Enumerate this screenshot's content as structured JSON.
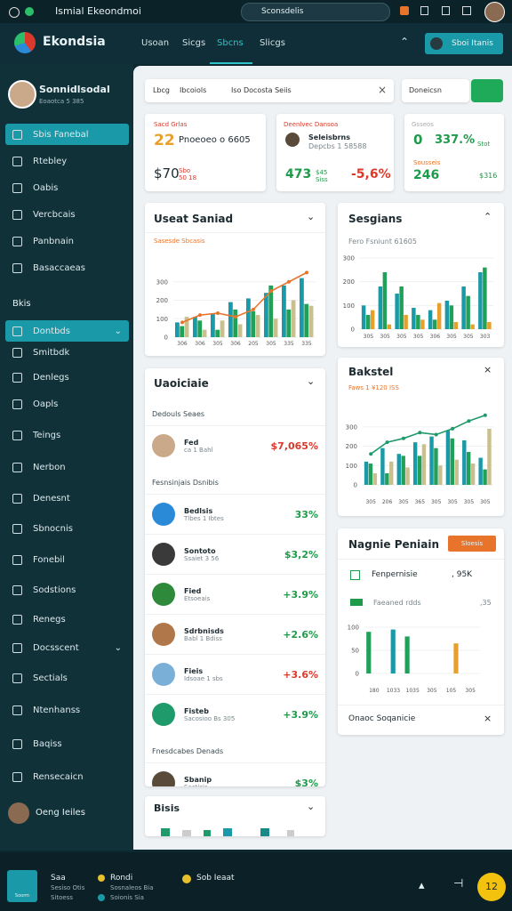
{
  "status": {
    "title": "Ismial Ekeondmoi",
    "search": "Sconsdelis"
  },
  "header": {
    "logo": "Ekondsia",
    "nav": [
      "Usoan",
      "Sicgs",
      "Sbcns",
      "Slicgs"
    ],
    "button": "Sboi Itanis"
  },
  "sidebar": {
    "name": "Sonnidlsodal",
    "subtitle": "Eoaotca 5 385",
    "items": [
      "Sbis Fanebal",
      "Rtebley",
      "Oabis",
      "Vercbcais",
      "Panbnain",
      "Basaccaeas"
    ],
    "section": "Bkis",
    "items2": [
      "Dontbds",
      "Smitbdk",
      "Denlegs",
      "Oapls",
      "Teings",
      "Nerbon",
      "Denesnt",
      "Sbnocnis",
      "Fonebil",
      "Sodstions",
      "Renegs",
      "Docsscent",
      "Sectials",
      "Ntenhanss",
      "Baqiss",
      "Rensecaicn"
    ],
    "user": "Oeng Ieiles"
  },
  "toolbar": {
    "tabs": [
      "Lbcg",
      "Ibcoiols",
      "Iso Docosta Seiis"
    ],
    "filter": "Doneicsn"
  },
  "kpis": [
    {
      "label": "Sacd Grlas",
      "big": "22",
      "text": "Pnoeoeo o 6605",
      "value": "$70",
      "note": "Sbo 50 18"
    },
    {
      "label": "Deenlvec Dansoa",
      "name": "Seleisbrns",
      "text": "Depcbs 1 58588",
      "value": "473",
      "note": "$45 Siss",
      "change": "-5,6%"
    },
    {
      "label": "Gsseos",
      "big": "0",
      "text": "337.%",
      "note": "Stot",
      "sub": "Sousseis",
      "value": "246",
      "change": "$316"
    }
  ],
  "charts": [
    {
      "title": "Useat Saniad",
      "subtitle": "Sasesde Sbcasis",
      "categories": [
        "306",
        "306",
        "305",
        "306",
        "205",
        "305",
        "335",
        "335"
      ],
      "ylim": [
        0,
        400
      ],
      "yticks": [
        0,
        100,
        200,
        300
      ],
      "series": [
        {
          "type": "bar",
          "color": "#1a9aa8",
          "values": [
            80,
            110,
            130,
            190,
            210,
            240,
            280,
            320
          ]
        },
        {
          "type": "bar",
          "color": "#21a05a",
          "values": [
            60,
            90,
            40,
            150,
            140,
            280,
            150,
            180
          ]
        },
        {
          "type": "bar",
          "color": "#c9bf8f",
          "values": [
            110,
            40,
            90,
            70,
            120,
            100,
            200,
            170
          ]
        },
        {
          "type": "line",
          "color": "#e8742c",
          "values": [
            80,
            120,
            130,
            110,
            150,
            250,
            300,
            350
          ]
        }
      ]
    },
    {
      "title": "Sesgians",
      "subtitle": "Fero Fsniunt 61605",
      "categories": [
        "30S",
        "305",
        "305",
        "305",
        "306",
        "305",
        "305",
        "303"
      ],
      "ylim": [
        0,
        300
      ],
      "yticks": [
        0,
        100,
        200,
        300
      ],
      "series": [
        {
          "type": "bar",
          "color": "#1a9aa8",
          "values": [
            100,
            180,
            150,
            90,
            80,
            120,
            180,
            240
          ]
        },
        {
          "type": "bar",
          "color": "#21a05a",
          "values": [
            60,
            240,
            180,
            60,
            40,
            100,
            140,
            260
          ]
        },
        {
          "type": "bar",
          "color": "#e8a02c",
          "values": [
            80,
            20,
            60,
            40,
            110,
            30,
            20,
            30
          ]
        }
      ]
    },
    {
      "title": "Bakstel",
      "subtitle": "Faws 1 ¥120 ISS",
      "categories": [
        "305",
        "206",
        "305",
        "365",
        "305",
        "305",
        "305",
        "305"
      ],
      "ylim": [
        0,
        400
      ],
      "yticks": [
        0,
        100,
        200,
        300
      ],
      "series": [
        {
          "type": "bar",
          "color": "#1a9aa8",
          "values": [
            120,
            190,
            160,
            220,
            250,
            280,
            230,
            140
          ]
        },
        {
          "type": "bar",
          "color": "#21a05a",
          "values": [
            110,
            60,
            150,
            150,
            190,
            240,
            170,
            80
          ]
        },
        {
          "type": "bar",
          "color": "#c9bf8f",
          "values": [
            60,
            120,
            90,
            210,
            100,
            130,
            110,
            290
          ]
        },
        {
          "type": "line",
          "color": "#1f9a6a",
          "values": [
            160,
            220,
            240,
            270,
            260,
            290,
            330,
            360
          ]
        }
      ]
    },
    {
      "title": "Nagnie Peniain",
      "button": "Sloesis",
      "row": "Fenpernisie",
      "row_value": ", 95K",
      "legend": "Faeaned rdds",
      "legend_value": ",35",
      "footer": "Onaoc Soqanicie",
      "categories": [
        "180",
        "1033",
        "1035",
        "305",
        "105",
        "305"
      ],
      "ylim": [
        0,
        100
      ],
      "yticks": [
        0,
        50,
        100
      ],
      "series": [
        {
          "type": "bar",
          "color": "#21a05a",
          "values": [
            90,
            0,
            80,
            0,
            0,
            0
          ]
        },
        {
          "type": "bar",
          "color": "#1a9aa8",
          "values": [
            0,
            95,
            0,
            0,
            0,
            0
          ]
        },
        {
          "type": "bar",
          "color": "#e8a02c",
          "values": [
            0,
            0,
            0,
            0,
            65,
            0
          ]
        }
      ]
    }
  ],
  "list": {
    "title": "Uaoiciaie",
    "sections": [
      {
        "title": "Dedouls Seaes",
        "items": [
          {
            "name": "Fed",
            "sub": "ca 1 Bahl",
            "value": "$7,065%",
            "color": "#d93a2b"
          }
        ]
      },
      {
        "title": "Fesnsinjais Dsnibis",
        "items": [
          {
            "name": "Bedlsis",
            "sub": "Tlbes 1 Ibtes",
            "value": "33%",
            "color": "#1f9a4a"
          },
          {
            "name": "Sontoto",
            "sub": "Ssaiet 3 56",
            "value": "$3,2%",
            "color": "#1f9a4a"
          },
          {
            "name": "Fied",
            "sub": "Etsoeais",
            "value": "+3.9%",
            "color": "#1f9a4a"
          },
          {
            "name": "Sdrbnisds",
            "sub": "Babl 1 Bdiss",
            "value": "+2.6%",
            "color": "#1f9a4a"
          },
          {
            "name": "Fieis",
            "sub": "Idsoae 1 sbs",
            "value": "+3.6%",
            "color": "#d93a2b"
          },
          {
            "name": "Fisteb",
            "sub": "Sacosioo Bs 305",
            "value": "+3.9%",
            "color": "#1f9a4a"
          }
        ]
      },
      {
        "title": "Fnesdcabes Denads",
        "items": [
          {
            "name": "Sbanip",
            "sub": "Sactisis",
            "value": "$3%",
            "color": "#1f9a4a"
          }
        ]
      }
    ]
  },
  "bottom_card": {
    "title": "Bisis"
  },
  "footer": {
    "tile": "Soorm",
    "lines": [
      "Saa",
      "Sesiso Otis",
      "Sitoess"
    ],
    "mid": [
      "Rondi",
      "Sosnaleos Bia",
      "Soionis Sia"
    ],
    "right": "Sob Ieaat",
    "badge": "12"
  }
}
